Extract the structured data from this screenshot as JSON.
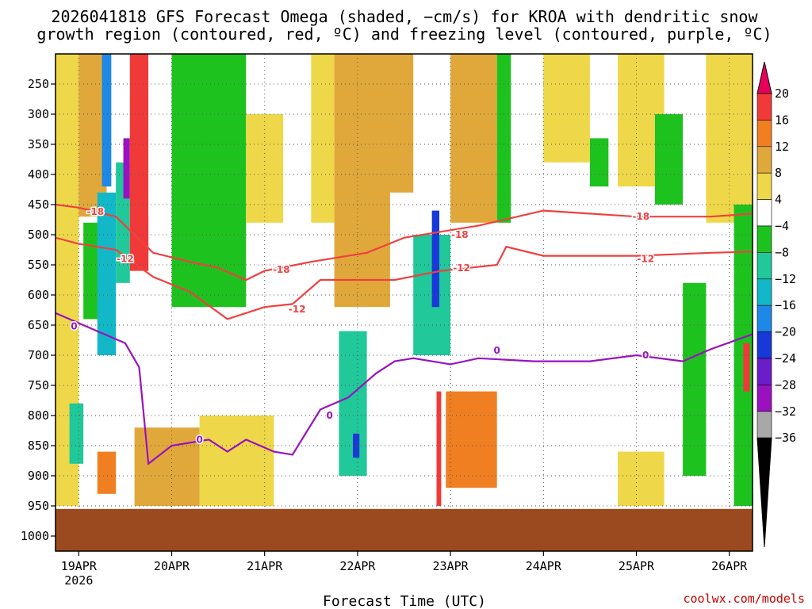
{
  "chart_data": {
    "type": "heatmap",
    "title_line1": "2026041818 GFS Forecast Omega (shaded, −cm/s) for KROA with dendritic snow",
    "title_line2": "growth region (contoured, red, ºC) and freezing level (contoured, purple, ºC)",
    "xlabel": "Forecast Time (UTC)",
    "credit": "coolwx.com/models",
    "x_ticks": [
      {
        "day": 0,
        "label": "19APR",
        "sub": "2026"
      },
      {
        "day": 1,
        "label": "20APR"
      },
      {
        "day": 2,
        "label": "21APR"
      },
      {
        "day": 3,
        "label": "22APR"
      },
      {
        "day": 4,
        "label": "23APR"
      },
      {
        "day": 5,
        "label": "24APR"
      },
      {
        "day": 6,
        "label": "25APR"
      },
      {
        "day": 7,
        "label": "26APR"
      }
    ],
    "x_range_days": [
      -0.25,
      7.25
    ],
    "y_ticks": [
      250,
      300,
      350,
      400,
      450,
      500,
      550,
      600,
      650,
      700,
      750,
      800,
      850,
      900,
      950,
      1000
    ],
    "y_range_hpa": [
      200,
      1025
    ],
    "ground_pressure_hpa": 955,
    "colorbar": {
      "labels": [
        "20",
        "16",
        "12",
        "8",
        "4",
        "−4",
        "−8",
        "−12",
        "−16",
        "−20",
        "−24",
        "−28",
        "−32",
        "−36"
      ],
      "colors": [
        "#e8005a",
        "#f03a3a",
        "#f07f22",
        "#e0a83a",
        "#eed84a",
        "#ffffff",
        "#1ec21e",
        "#20c89a",
        "#12b8c8",
        "#1e88e8",
        "#1838d8",
        "#6a1ec8",
        "#9a12c0",
        "#a8a8a8",
        "#000000"
      ]
    },
    "omega_cells": [
      {
        "t0": -0.25,
        "t1": 0.0,
        "p0": 200,
        "p1": 950,
        "c": 4
      },
      {
        "t0": -0.1,
        "t1": 0.05,
        "p0": 780,
        "p1": 880,
        "c": 7
      },
      {
        "t0": 0.0,
        "t1": 0.3,
        "p0": 200,
        "p1": 470,
        "c": 3
      },
      {
        "t0": 0.05,
        "t1": 0.25,
        "p0": 480,
        "p1": 640,
        "c": 6
      },
      {
        "t0": 0.2,
        "t1": 0.4,
        "p0": 430,
        "p1": 700,
        "c": 8
      },
      {
        "t0": 0.25,
        "t1": 0.35,
        "p0": 200,
        "p1": 420,
        "c": 9
      },
      {
        "t0": 0.4,
        "t1": 0.55,
        "p0": 380,
        "p1": 580,
        "c": 7
      },
      {
        "t0": 0.48,
        "t1": 0.55,
        "p0": 340,
        "p1": 440,
        "c": 12
      },
      {
        "t0": 0.55,
        "t1": 0.75,
        "p0": 200,
        "p1": 560,
        "c": 1
      },
      {
        "t0": 0.75,
        "t1": 1.0,
        "p0": 200,
        "p1": 470,
        "c": 5
      },
      {
        "t0": 1.0,
        "t1": 1.8,
        "p0": 200,
        "p1": 620,
        "c": 6
      },
      {
        "t0": 0.6,
        "t1": 1.3,
        "p0": 820,
        "p1": 950,
        "c": 3
      },
      {
        "t0": 0.2,
        "t1": 0.4,
        "p0": 860,
        "p1": 930,
        "c": 2
      },
      {
        "t0": 1.8,
        "t1": 2.2,
        "p0": 300,
        "p1": 480,
        "c": 4
      },
      {
        "t0": 1.3,
        "t1": 2.1,
        "p0": 800,
        "p1": 950,
        "c": 4
      },
      {
        "t0": 2.5,
        "t1": 2.75,
        "p0": 200,
        "p1": 480,
        "c": 4
      },
      {
        "t0": 2.85,
        "t1": 3.15,
        "p0": 200,
        "p1": 540,
        "c": 1
      },
      {
        "t0": 2.75,
        "t1": 3.35,
        "p0": 200,
        "p1": 620,
        "c": 3
      },
      {
        "t0": 2.8,
        "t1": 3.1,
        "p0": 660,
        "p1": 900,
        "c": 7
      },
      {
        "t0": 2.95,
        "t1": 3.02,
        "p0": 830,
        "p1": 870,
        "c": 10
      },
      {
        "t0": 3.3,
        "t1": 3.6,
        "p0": 200,
        "p1": 430,
        "c": 3
      },
      {
        "t0": 3.6,
        "t1": 4.0,
        "p0": 500,
        "p1": 700,
        "c": 7
      },
      {
        "t0": 3.8,
        "t1": 3.88,
        "p0": 460,
        "p1": 620,
        "c": 10
      },
      {
        "t0": 3.85,
        "t1": 3.9,
        "p0": 760,
        "p1": 950,
        "c": 1
      },
      {
        "t0": 4.0,
        "t1": 4.5,
        "p0": 200,
        "p1": 480,
        "c": 3
      },
      {
        "t0": 3.95,
        "t1": 4.5,
        "p0": 760,
        "p1": 920,
        "c": 2
      },
      {
        "t0": 4.5,
        "t1": 4.65,
        "p0": 200,
        "p1": 480,
        "c": 6
      },
      {
        "t0": 5.0,
        "t1": 5.5,
        "p0": 200,
        "p1": 380,
        "c": 4
      },
      {
        "t0": 5.5,
        "t1": 5.7,
        "p0": 340,
        "p1": 420,
        "c": 6
      },
      {
        "t0": 5.8,
        "t1": 6.3,
        "p0": 200,
        "p1": 420,
        "c": 4
      },
      {
        "t0": 6.2,
        "t1": 6.5,
        "p0": 300,
        "p1": 450,
        "c": 6
      },
      {
        "t0": 6.5,
        "t1": 6.75,
        "p0": 580,
        "p1": 900,
        "c": 6
      },
      {
        "t0": 5.8,
        "t1": 6.3,
        "p0": 860,
        "p1": 950,
        "c": 4
      },
      {
        "t0": 6.75,
        "t1": 7.25,
        "p0": 200,
        "p1": 480,
        "c": 4
      },
      {
        "t0": 7.05,
        "t1": 7.25,
        "p0": 450,
        "p1": 950,
        "c": 6
      },
      {
        "t0": 7.15,
        "t1": 7.22,
        "p0": 680,
        "p1": 760,
        "c": 1
      }
    ],
    "contours": [
      {
        "label": "-18",
        "color": "#f04040",
        "label_pos": [
          [
            0.18,
            462
          ],
          [
            2.18,
            558
          ],
          [
            4.1,
            500
          ],
          [
            6.05,
            470
          ]
        ],
        "points": [
          [
            -0.25,
            450
          ],
          [
            0.0,
            455
          ],
          [
            0.4,
            470
          ],
          [
            0.8,
            530
          ],
          [
            1.2,
            545
          ],
          [
            1.5,
            555
          ],
          [
            1.8,
            575
          ],
          [
            2.0,
            560
          ],
          [
            2.5,
            545
          ],
          [
            2.9,
            535
          ],
          [
            3.1,
            530
          ],
          [
            3.5,
            505
          ],
          [
            3.9,
            495
          ],
          [
            4.3,
            485
          ],
          [
            5.0,
            460
          ],
          [
            6.0,
            470
          ],
          [
            6.8,
            470
          ],
          [
            7.25,
            465
          ]
        ]
      },
      {
        "label": "-12",
        "color": "#f04040",
        "label_pos": [
          [
            0.5,
            540
          ],
          [
            2.35,
            624
          ],
          [
            4.12,
            555
          ],
          [
            6.1,
            540
          ]
        ],
        "points": [
          [
            -0.25,
            505
          ],
          [
            0.0,
            515
          ],
          [
            0.4,
            525
          ],
          [
            0.8,
            570
          ],
          [
            1.2,
            595
          ],
          [
            1.6,
            640
          ],
          [
            2.0,
            620
          ],
          [
            2.3,
            615
          ],
          [
            2.6,
            575
          ],
          [
            3.0,
            575
          ],
          [
            3.4,
            575
          ],
          [
            3.9,
            560
          ],
          [
            4.2,
            555
          ],
          [
            4.5,
            550
          ],
          [
            4.6,
            520
          ],
          [
            5.0,
            535
          ],
          [
            6.0,
            535
          ],
          [
            6.8,
            530
          ],
          [
            7.25,
            528
          ]
        ]
      },
      {
        "label": "0",
        "color": "#9a12c0",
        "label_pos": [
          [
            -0.05,
            652
          ],
          [
            1.3,
            840
          ],
          [
            2.7,
            800
          ],
          [
            4.5,
            692
          ],
          [
            6.1,
            700
          ]
        ],
        "points": [
          [
            -0.25,
            630
          ],
          [
            0.2,
            660
          ],
          [
            0.5,
            680
          ],
          [
            0.65,
            720
          ],
          [
            0.75,
            880
          ],
          [
            1.0,
            850
          ],
          [
            1.4,
            840
          ],
          [
            1.6,
            860
          ],
          [
            1.8,
            840
          ],
          [
            2.1,
            860
          ],
          [
            2.3,
            865
          ],
          [
            2.6,
            790
          ],
          [
            2.9,
            770
          ],
          [
            3.2,
            730
          ],
          [
            3.4,
            710
          ],
          [
            3.6,
            705
          ],
          [
            4.0,
            715
          ],
          [
            4.3,
            705
          ],
          [
            4.9,
            710
          ],
          [
            5.5,
            710
          ],
          [
            6.0,
            700
          ],
          [
            6.5,
            710
          ],
          [
            6.8,
            690
          ],
          [
            7.25,
            665
          ]
        ]
      }
    ]
  }
}
